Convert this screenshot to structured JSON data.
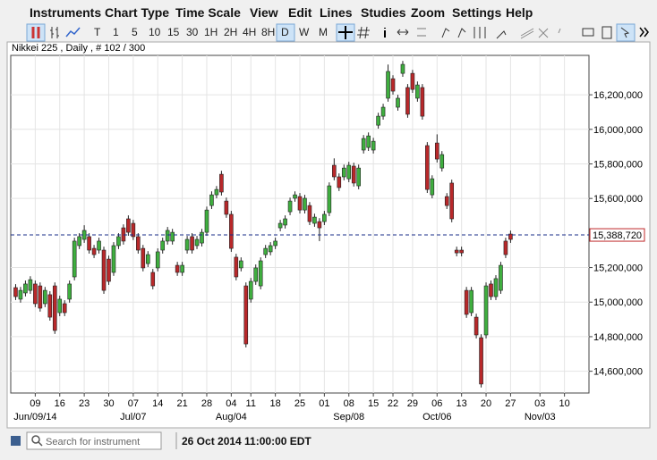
{
  "menu": [
    "Instruments",
    "Chart Type",
    "Time Scale",
    "View",
    "Edit",
    "Lines",
    "Studies",
    "Zoom",
    "Settings",
    "Help"
  ],
  "toolbar": [
    "T",
    "1",
    "5",
    "10",
    "15",
    "30",
    "1H",
    "2H",
    "4H",
    "8H",
    "D",
    "W",
    "M"
  ],
  "status": {
    "search_placeholder": "Search for instrument",
    "datetime": "26 Oct 2014 11:00:00 EDT"
  },
  "chart_data": {
    "type": "candlestick",
    "title": "Nikkei 225 , Daily , # 102 / 300",
    "up_color": "#3fae3f",
    "down_color": "#b8282a",
    "grid": true,
    "x": [
      0,
      1,
      2,
      3,
      4,
      5,
      6,
      7,
      8,
      9,
      10,
      11,
      12,
      13,
      14,
      15,
      16,
      17,
      18,
      19,
      20,
      21,
      22,
      23,
      24,
      25,
      26,
      27,
      28,
      29,
      30,
      31,
      32,
      33,
      34,
      35,
      36,
      37,
      38,
      39,
      40,
      41,
      42,
      43,
      44,
      45,
      46,
      47,
      48,
      49,
      50,
      51,
      52,
      53,
      54,
      55,
      56,
      57,
      58,
      59,
      60,
      61,
      62,
      63,
      64,
      65,
      66,
      67,
      68,
      69,
      70,
      71,
      72,
      73,
      74,
      75,
      76,
      77,
      78,
      79,
      80,
      81,
      82,
      83,
      84,
      85,
      86,
      87,
      88,
      89,
      90,
      91,
      92,
      93,
      94,
      95,
      96,
      97,
      98,
      99,
      100,
      101
    ],
    "open": [
      15084000,
      15017000,
      15053000,
      15068000,
      15105000,
      15094000,
      14991000,
      15043000,
      15094000,
      14939000,
      14991000,
      15017000,
      15146000,
      15327000,
      15363000,
      15379000,
      15311000,
      15301000,
      15301000,
      15249000,
      15172000,
      15327000,
      15430000,
      15482000,
      15456000,
      15379000,
      15311000,
      15223000,
      15172000,
      15198000,
      15301000,
      15353000,
      15353000,
      15213000,
      15172000,
      15301000,
      15379000,
      15327000,
      15342000,
      15404000,
      15559000,
      15621000,
      15740000,
      15585000,
      15508000,
      15260000,
      15198000,
      15094000,
      15017000,
      15120000,
      15094000,
      15275000,
      15291000,
      15327000,
      15430000,
      15446000,
      15523000,
      15601000,
      15611000,
      15533000,
      15559000,
      15456000,
      15466000,
      15466000,
      15518000,
      15792000,
      15725000,
      15725000,
      15714000,
      15787000,
      15673000,
      15880000,
      15895000,
      15880000,
      16024000,
      16076000,
      16180000,
      16293000,
      16128000,
      16324000,
      16242000,
      16324000,
      16180000,
      16242000,
      15906000,
      15621000,
      15921000,
      15776000,
      15611000,
      15689000,
      15301000,
      15301000,
      15068000,
      14939000,
      14913000,
      14794000,
      14810000,
      15105000,
      15032000,
      15068000,
      15353000,
      15394000
    ],
    "high": [
      15104000,
      15088000,
      15125000,
      15150000,
      15125000,
      15114000,
      15088000,
      15063000,
      15114000,
      15037000,
      15011000,
      15125000,
      15373000,
      15399000,
      15445000,
      15399000,
      15331000,
      15373000,
      15321000,
      15269000,
      15347000,
      15399000,
      15450000,
      15502000,
      15476000,
      15399000,
      15331000,
      15295000,
      15192000,
      15311000,
      15373000,
      15435000,
      15424000,
      15233000,
      15233000,
      15383000,
      15399000,
      15383000,
      15424000,
      15553000,
      15641000,
      15672000,
      15760000,
      15605000,
      15528000,
      15280000,
      15259000,
      15114000,
      15140000,
      15218000,
      15259000,
      15331000,
      15347000,
      15373000,
      15476000,
      15502000,
      15605000,
      15641000,
      15631000,
      15621000,
      15579000,
      15512000,
      15486000,
      15528000,
      15693000,
      15832000,
      15745000,
      15796000,
      15812000,
      15807000,
      15796000,
      15967000,
      15982000,
      15951000,
      16096000,
      16148000,
      16375000,
      16313000,
      16200000,
      16396000,
      16262000,
      16344000,
      16277000,
      16262000,
      15926000,
      15734000,
      15971000,
      15874000,
      15631000,
      15709000,
      15321000,
      15321000,
      15088000,
      15088000,
      14933000,
      14814000,
      15114000,
      15125000,
      15156000,
      15233000,
      15373000,
      15414000
    ],
    "low": [
      15012000,
      14997000,
      15033000,
      15048000,
      14971000,
      14945000,
      14971000,
      14893000,
      14816000,
      14919000,
      14919000,
      14997000,
      15126000,
      15307000,
      15343000,
      15281000,
      15255000,
      15281000,
      15048000,
      15100000,
      15152000,
      15307000,
      15333000,
      15384000,
      15359000,
      15281000,
      15178000,
      15203000,
      15074000,
      15178000,
      15281000,
      15333000,
      15333000,
      15152000,
      15152000,
      15281000,
      15281000,
      15307000,
      15322000,
      15384000,
      15539000,
      15601000,
      15617000,
      15488000,
      15291000,
      15126000,
      15178000,
      14738000,
      14997000,
      15100000,
      15074000,
      15255000,
      15271000,
      15307000,
      15410000,
      15426000,
      15503000,
      15581000,
      15513000,
      15513000,
      15446000,
      15436000,
      15353000,
      15446000,
      15498000,
      15705000,
      15643000,
      15705000,
      15694000,
      15669000,
      15653000,
      15860000,
      15875000,
      15860000,
      16004000,
      16056000,
      16160000,
      16201000,
      16108000,
      16304000,
      16067000,
      16211000,
      16160000,
      16056000,
      15632000,
      15601000,
      15808000,
      15756000,
      15539000,
      15462000,
      15265000,
      15265000,
      14909000,
      14919000,
      14790000,
      14506000,
      14790000,
      15012000,
      15012000,
      15048000,
      15255000,
      15343000
    ],
    "close": [
      15032000,
      15068000,
      15105000,
      15130000,
      14991000,
      14965000,
      15068000,
      14913000,
      14836000,
      15017000,
      14939000,
      15105000,
      15353000,
      15379000,
      15415000,
      15301000,
      15275000,
      15353000,
      15068000,
      15120000,
      15327000,
      15379000,
      15353000,
      15404000,
      15379000,
      15301000,
      15198000,
      15275000,
      15094000,
      15291000,
      15353000,
      15415000,
      15404000,
      15172000,
      15213000,
      15363000,
      15301000,
      15363000,
      15404000,
      15533000,
      15621000,
      15652000,
      15637000,
      15508000,
      15311000,
      15146000,
      15239000,
      14758000,
      15120000,
      15198000,
      15239000,
      15311000,
      15327000,
      15353000,
      15456000,
      15482000,
      15585000,
      15621000,
      15533000,
      15601000,
      15466000,
      15492000,
      15430000,
      15508000,
      15673000,
      15725000,
      15663000,
      15776000,
      15792000,
      15689000,
      15776000,
      15947000,
      15962000,
      15931000,
      16076000,
      16128000,
      16335000,
      16221000,
      16180000,
      16376000,
      16087000,
      16231000,
      16257000,
      16076000,
      15652000,
      15714000,
      15828000,
      15854000,
      15559000,
      15482000,
      15285000,
      15285000,
      14929000,
      15068000,
      14810000,
      14526000,
      15094000,
      15032000,
      15136000,
      15213000,
      15275000,
      15363000
    ],
    "xlim": [
      -1,
      117
    ],
    "xticks": [
      {
        "value": 4,
        "label": "09"
      },
      {
        "value": 9,
        "label": "16"
      },
      {
        "value": 14,
        "label": "23"
      },
      {
        "value": 19,
        "label": "30"
      },
      {
        "value": 24,
        "label": "07"
      },
      {
        "value": 29,
        "label": "14"
      },
      {
        "value": 34,
        "label": "21"
      },
      {
        "value": 39,
        "label": "28"
      },
      {
        "value": 44,
        "label": "04"
      },
      {
        "value": 48,
        "label": "11"
      },
      {
        "value": 53,
        "label": "18"
      },
      {
        "value": 58,
        "label": "25"
      },
      {
        "value": 63,
        "label": "01"
      },
      {
        "value": 68,
        "label": "08"
      },
      {
        "value": 73,
        "label": "15"
      },
      {
        "value": 77,
        "label": "22"
      },
      {
        "value": 81,
        "label": "29"
      },
      {
        "value": 86,
        "label": "06"
      },
      {
        "value": 91,
        "label": "13"
      },
      {
        "value": 96,
        "label": "20"
      },
      {
        "value": 101,
        "label": "27"
      },
      {
        "value": 107,
        "label": "03"
      },
      {
        "value": 112,
        "label": "10"
      }
    ],
    "month_ticks": [
      {
        "value": 4,
        "label": "Jun/09/14"
      },
      {
        "value": 24,
        "label": "Jul/07"
      },
      {
        "value": 44,
        "label": "Aug/04"
      },
      {
        "value": 68,
        "label": "Sep/08"
      },
      {
        "value": 86,
        "label": "Oct/06"
      },
      {
        "value": 107,
        "label": "Nov/03"
      }
    ],
    "ylim": [
      14474000,
      16428000
    ],
    "yticks": [
      {
        "value": 14600000,
        "label": "14,600,000"
      },
      {
        "value": 14800000,
        "label": "14,800,000"
      },
      {
        "value": 15000000,
        "label": "15,000,000"
      },
      {
        "value": 15200000,
        "label": "15,200,000"
      },
      {
        "value": 15600000,
        "label": "15,600,000"
      },
      {
        "value": 15800000,
        "label": "15,800,000"
      },
      {
        "value": 16000000,
        "label": "16,000,000"
      },
      {
        "value": 16200000,
        "label": "16,200,000"
      }
    ],
    "last_price": {
      "value": 15388720,
      "label": "15,388,720"
    }
  }
}
